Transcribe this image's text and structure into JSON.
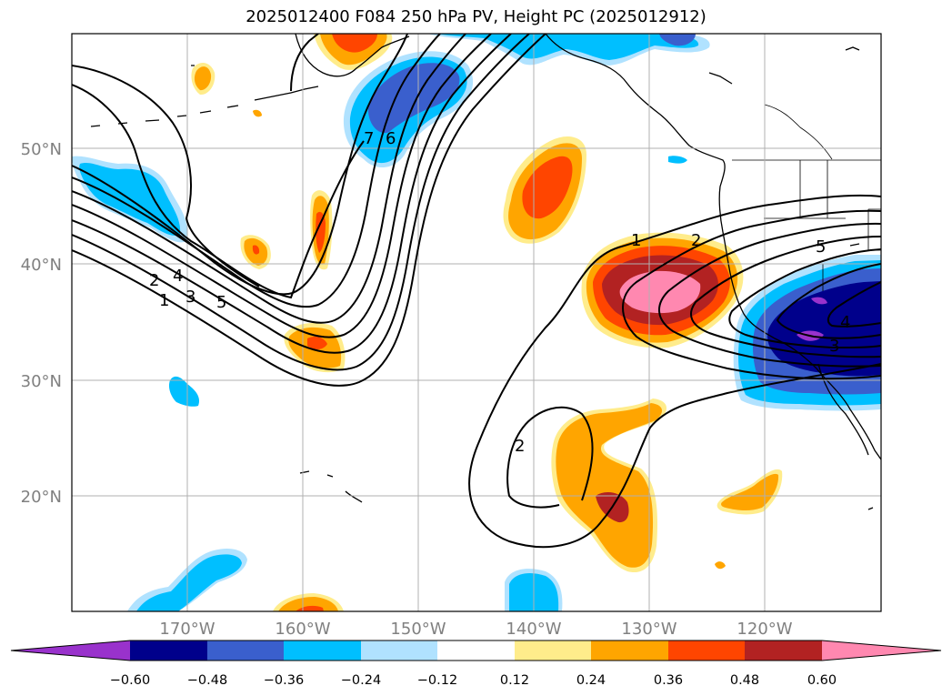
{
  "title": "2025012400 F084 250 hPa PV, Height PC (2025012912)",
  "map": {
    "lat_labels": [
      "50°N",
      "40°N",
      "30°N",
      "20°N"
    ],
    "lon_labels": [
      "170°W",
      "160°W",
      "150°W",
      "140°W",
      "130°W",
      "120°W"
    ],
    "contour_labels": [
      "1",
      "2",
      "3",
      "4",
      "5",
      "6",
      "7",
      "1",
      "2",
      "5",
      "2",
      "3",
      "4"
    ]
  },
  "colorbar": {
    "labels": [
      "−0.60",
      "−0.48",
      "−0.36",
      "−0.24",
      "−0.12",
      "0.12",
      "0.24",
      "0.36",
      "0.48",
      "0.60"
    ],
    "colors": [
      "#9932cc",
      "#00008b",
      "#3a5fcd",
      "#00bfff",
      "#b0e2ff",
      "#ffffff",
      "#ffec8b",
      "#ffa500",
      "#ff4500",
      "#b22222",
      "#ff88b0",
      "#ff88b0"
    ]
  }
}
